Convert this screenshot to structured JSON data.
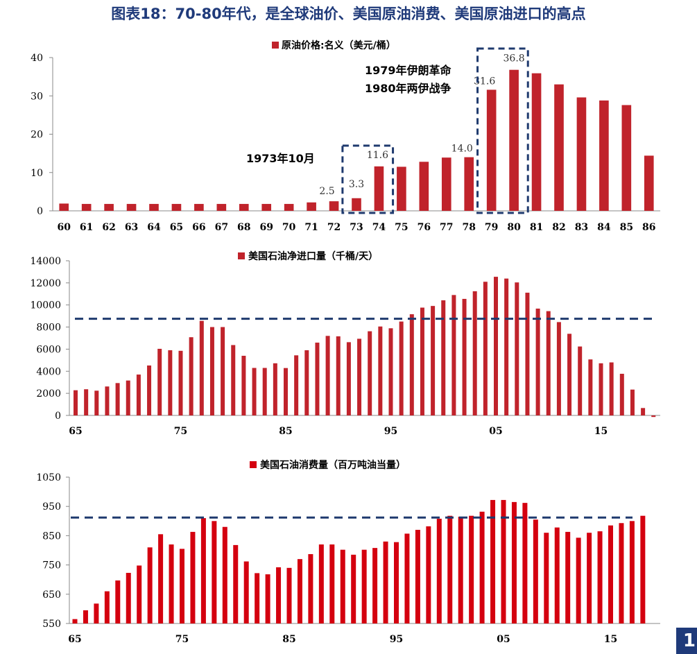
{
  "page_title": "图表18：70-80年代，是全球油价、美国原油消费、美国原油进口的高点",
  "corner_badge": "1",
  "colors": {
    "bar_dark": "#c0232b",
    "bar_bright": "#d4000f",
    "dash": "#1f3a6e"
  },
  "chart_data": [
    {
      "type": "bar",
      "legend": "原油价格:名义（美元/桶）",
      "categories": [
        "60",
        "61",
        "62",
        "63",
        "64",
        "65",
        "66",
        "67",
        "68",
        "69",
        "70",
        "71",
        "72",
        "73",
        "74",
        "75",
        "76",
        "77",
        "78",
        "79",
        "80",
        "81",
        "82",
        "83",
        "84",
        "85",
        "86"
      ],
      "values": [
        1.9,
        1.8,
        1.8,
        1.8,
        1.8,
        1.8,
        1.8,
        1.8,
        1.8,
        1.8,
        1.8,
        2.2,
        2.5,
        3.3,
        11.6,
        11.5,
        12.8,
        13.9,
        14.0,
        31.6,
        36.8,
        35.9,
        33.0,
        29.6,
        28.8,
        27.6,
        14.4
      ],
      "ylim": [
        0,
        40
      ],
      "yticks": [
        0,
        10,
        20,
        30,
        40
      ],
      "data_labels": [
        {
          "category": "72",
          "text": "2.5"
        },
        {
          "category": "73",
          "text": "3.3"
        },
        {
          "category": "74",
          "text": "11.6"
        },
        {
          "category": "78",
          "text": "14.0"
        },
        {
          "category": "79",
          "text": "31.6"
        },
        {
          "category": "80",
          "text": "36.8"
        }
      ],
      "annotations": [
        "1973年10月",
        "1979年伊朗革命",
        "1980年两伊战争"
      ],
      "highlight_boxes": [
        [
          "73",
          "74"
        ],
        [
          "79",
          "80"
        ]
      ]
    },
    {
      "type": "bar",
      "legend": "美国石油净进口量（千桶/天）",
      "x": [
        1965,
        1966,
        1967,
        1968,
        1969,
        1970,
        1971,
        1972,
        1973,
        1974,
        1975,
        1976,
        1977,
        1978,
        1979,
        1980,
        1981,
        1982,
        1983,
        1984,
        1985,
        1986,
        1987,
        1988,
        1989,
        1990,
        1991,
        1992,
        1993,
        1994,
        1995,
        1996,
        1997,
        1998,
        1999,
        2000,
        2001,
        2002,
        2003,
        2004,
        2005,
        2006,
        2007,
        2008,
        2009,
        2010,
        2011,
        2012,
        2013,
        2014,
        2015,
        2016,
        2017,
        2018,
        2019,
        2020
      ],
      "values": [
        2280,
        2370,
        2240,
        2620,
        2930,
        3160,
        3700,
        4520,
        6030,
        5900,
        5850,
        7080,
        8560,
        8000,
        8000,
        6370,
        5400,
        4300,
        4300,
        4720,
        4290,
        5440,
        5900,
        6590,
        7200,
        7160,
        6630,
        6940,
        7620,
        8050,
        7890,
        8500,
        9160,
        9760,
        9910,
        10420,
        10900,
        10550,
        11240,
        12100,
        12550,
        12390,
        12040,
        11110,
        9670,
        9440,
        8450,
        7390,
        6240,
        5070,
        4720,
        4800,
        3770,
        2340,
        670,
        -140
      ],
      "xticks": [
        "65",
        "75",
        "85",
        "95",
        "05",
        "15"
      ],
      "ylim": [
        0,
        14000
      ],
      "yticks": [
        0,
        2000,
        4000,
        6000,
        8000,
        10000,
        12000,
        14000
      ],
      "reference_line": 8750
    },
    {
      "type": "bar",
      "legend": "美国石油消费量（百万吨油当量）",
      "x": [
        1965,
        1966,
        1967,
        1968,
        1969,
        1970,
        1971,
        1972,
        1973,
        1974,
        1975,
        1976,
        1977,
        1978,
        1979,
        1980,
        1981,
        1982,
        1983,
        1984,
        1985,
        1986,
        1987,
        1988,
        1989,
        1990,
        1991,
        1992,
        1993,
        1994,
        1995,
        1996,
        1997,
        1998,
        1999,
        2000,
        2001,
        2002,
        2003,
        2004,
        2005,
        2006,
        2007,
        2008,
        2009,
        2010,
        2011,
        2012,
        2013,
        2014,
        2015,
        2016,
        2017,
        2018
      ],
      "values": [
        565,
        595,
        618,
        660,
        697,
        723,
        748,
        810,
        855,
        820,
        805,
        863,
        910,
        900,
        880,
        818,
        762,
        722,
        718,
        742,
        740,
        770,
        787,
        820,
        820,
        802,
        785,
        802,
        808,
        830,
        828,
        857,
        870,
        882,
        908,
        918,
        915,
        918,
        932,
        972,
        972,
        965,
        962,
        905,
        860,
        878,
        863,
        843,
        860,
        865,
        885,
        893,
        900,
        918
      ],
      "xticks": [
        "65",
        "75",
        "85",
        "95",
        "05",
        "15"
      ],
      "ylim": [
        550,
        1050
      ],
      "yticks": [
        550,
        650,
        750,
        850,
        950,
        1050
      ],
      "reference_line": 912
    }
  ]
}
